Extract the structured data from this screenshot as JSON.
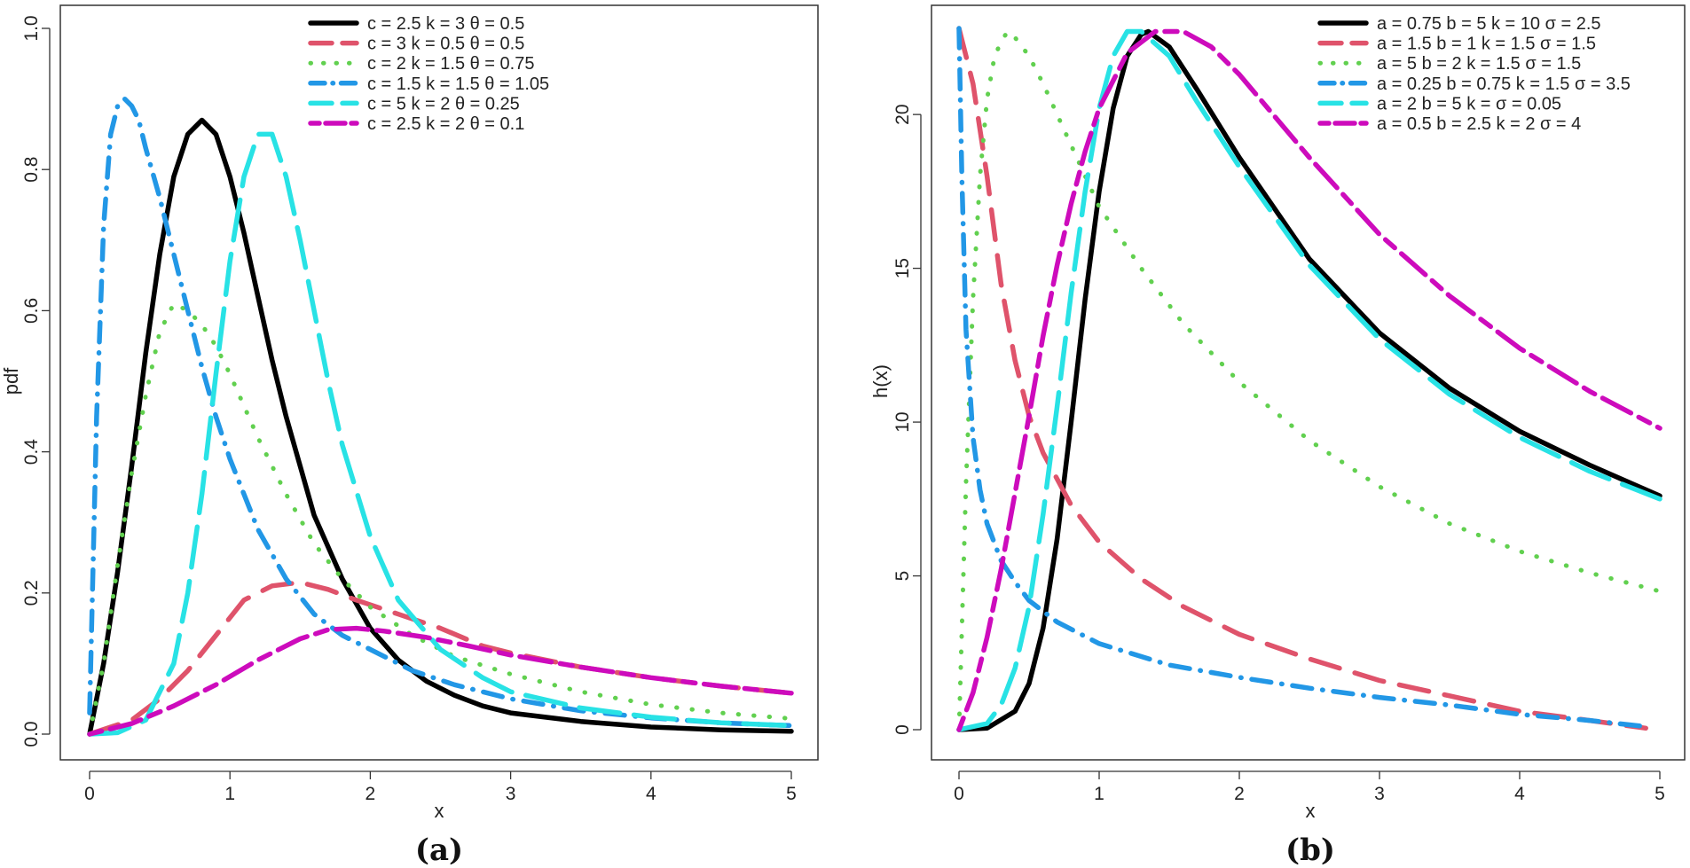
{
  "chart_data": [
    {
      "type": "line",
      "caption": "(a)",
      "xlabel": "x",
      "ylabel": "pdf",
      "xlim": [
        0,
        5
      ],
      "ylim": [
        0,
        1.0
      ],
      "xticks": [
        "0",
        "1",
        "2",
        "3",
        "4",
        "5"
      ],
      "yticks": [
        "0.0",
        "0.2",
        "0.4",
        "0.6",
        "0.8",
        "1.0"
      ],
      "legend_position": "top-right",
      "series": [
        {
          "name": "c = 2.5  k = 3  θ = 0.5",
          "color": "#000000",
          "dash": "solid",
          "x": [
            0,
            0.1,
            0.2,
            0.3,
            0.4,
            0.5,
            0.6,
            0.7,
            0.8,
            0.9,
            1.0,
            1.1,
            1.2,
            1.3,
            1.4,
            1.5,
            1.6,
            1.8,
            2.0,
            2.2,
            2.4,
            2.6,
            2.8,
            3.0,
            3.5,
            4.0,
            4.5,
            5.0
          ],
          "y": [
            0,
            0.1,
            0.23,
            0.38,
            0.54,
            0.68,
            0.79,
            0.85,
            0.87,
            0.85,
            0.79,
            0.71,
            0.62,
            0.53,
            0.45,
            0.38,
            0.31,
            0.22,
            0.15,
            0.105,
            0.075,
            0.055,
            0.04,
            0.03,
            0.018,
            0.01,
            0.006,
            0.004
          ]
        },
        {
          "name": "c = 3  k = 0.5  θ = 0.5",
          "color": "#df536b",
          "dash": "dash",
          "x": [
            0,
            0.3,
            0.5,
            0.7,
            0.9,
            1.1,
            1.3,
            1.5,
            1.7,
            1.9,
            2.2,
            2.5,
            2.8,
            3.0,
            3.5,
            4.0,
            4.5,
            5.0
          ],
          "y": [
            0,
            0.02,
            0.05,
            0.09,
            0.14,
            0.19,
            0.21,
            0.215,
            0.205,
            0.19,
            0.17,
            0.15,
            0.125,
            0.115,
            0.095,
            0.08,
            0.068,
            0.058
          ]
        },
        {
          "name": "c = 2  k = 1.5  θ = 0.75",
          "color": "#61d04f",
          "dash": "dot",
          "x": [
            0,
            0.1,
            0.2,
            0.3,
            0.4,
            0.5,
            0.6,
            0.7,
            0.8,
            0.9,
            1.0,
            1.2,
            1.4,
            1.6,
            1.8,
            2.0,
            2.3,
            2.6,
            3.0,
            3.5,
            4.0,
            4.5,
            5.0
          ],
          "y": [
            0,
            0.1,
            0.24,
            0.37,
            0.48,
            0.57,
            0.61,
            0.6,
            0.58,
            0.55,
            0.51,
            0.42,
            0.34,
            0.27,
            0.22,
            0.18,
            0.14,
            0.11,
            0.085,
            0.06,
            0.042,
            0.03,
            0.022
          ]
        },
        {
          "name": "c = 1.5  k = 1.5  θ = 1.05",
          "color": "#2297e6",
          "dash": "dashdot",
          "x": [
            0,
            0.05,
            0.1,
            0.15,
            0.2,
            0.25,
            0.3,
            0.35,
            0.4,
            0.5,
            0.6,
            0.7,
            0.8,
            0.9,
            1.0,
            1.1,
            1.2,
            1.4,
            1.6,
            1.8,
            2.0,
            2.3,
            2.6,
            3.0,
            3.5,
            4.0,
            4.5,
            5.0
          ],
          "y": [
            0.03,
            0.45,
            0.72,
            0.85,
            0.89,
            0.9,
            0.89,
            0.87,
            0.83,
            0.76,
            0.68,
            0.6,
            0.52,
            0.45,
            0.39,
            0.34,
            0.29,
            0.22,
            0.17,
            0.14,
            0.12,
            0.09,
            0.07,
            0.05,
            0.033,
            0.023,
            0.016,
            0.012
          ]
        },
        {
          "name": "c = 5  k = 2  θ = 0.25",
          "color": "#28e2e5",
          "dash": "longdash",
          "x": [
            0,
            0.2,
            0.4,
            0.6,
            0.7,
            0.8,
            0.9,
            1.0,
            1.1,
            1.2,
            1.3,
            1.4,
            1.5,
            1.6,
            1.7,
            1.8,
            2.0,
            2.2,
            2.5,
            2.8,
            3.0,
            3.5,
            4.0,
            4.5,
            5.0
          ],
          "y": [
            0,
            0.002,
            0.02,
            0.1,
            0.2,
            0.34,
            0.51,
            0.67,
            0.79,
            0.85,
            0.85,
            0.79,
            0.7,
            0.6,
            0.5,
            0.41,
            0.28,
            0.19,
            0.12,
            0.08,
            0.06,
            0.037,
            0.024,
            0.016,
            0.012
          ]
        },
        {
          "name": "c = 2.5  k = 2  θ = 0.1",
          "color": "#cd0bbc",
          "dash": "twodash",
          "x": [
            0,
            0.3,
            0.6,
            0.9,
            1.2,
            1.5,
            1.7,
            1.9,
            2.1,
            2.4,
            2.7,
            3.0,
            3.5,
            4.0,
            4.5,
            5.0
          ],
          "y": [
            0,
            0.015,
            0.04,
            0.07,
            0.105,
            0.135,
            0.148,
            0.15,
            0.146,
            0.137,
            0.125,
            0.112,
            0.095,
            0.08,
            0.068,
            0.058
          ]
        }
      ]
    },
    {
      "type": "line",
      "caption": "(b)",
      "xlabel": "x",
      "ylabel": "h(x)",
      "xlim": [
        0,
        5
      ],
      "ylim": [
        0,
        22.8
      ],
      "xticks": [
        "0",
        "1",
        "2",
        "3",
        "4",
        "5"
      ],
      "yticks": [
        "0",
        "5",
        "10",
        "15",
        "20"
      ],
      "legend_position": "top-right",
      "series": [
        {
          "name": "a = 0.75  b = 5  k = 10  σ = 2.5",
          "color": "#000000",
          "dash": "solid",
          "x": [
            0,
            0.2,
            0.4,
            0.5,
            0.6,
            0.7,
            0.8,
            0.9,
            1.0,
            1.1,
            1.2,
            1.3,
            1.35,
            1.5,
            1.7,
            2.0,
            2.5,
            3.0,
            3.5,
            4.0,
            4.5,
            5.0
          ],
          "y": [
            0,
            0.05,
            0.6,
            1.5,
            3.3,
            6.2,
            10,
            14,
            17.5,
            20.2,
            21.9,
            22.6,
            22.7,
            22.2,
            20.8,
            18.6,
            15.3,
            12.9,
            11.1,
            9.7,
            8.6,
            7.6
          ]
        },
        {
          "name": "a = 1.5  b = 1  k = 1.5  σ = 1.5",
          "color": "#df536b",
          "dash": "dash",
          "x": [
            0,
            0.1,
            0.2,
            0.3,
            0.4,
            0.5,
            0.6,
            0.8,
            1.0,
            1.3,
            1.6,
            2.0,
            2.5,
            3.0,
            3.5,
            4.0,
            4.5,
            4.9
          ],
          "y": [
            22.8,
            21,
            18,
            14.5,
            12,
            10.2,
            9,
            7.3,
            6.1,
            4.9,
            4.0,
            3.1,
            2.3,
            1.6,
            1.1,
            0.6,
            0.3,
            0.05
          ]
        },
        {
          "name": "a = 5  b = 2  k = 1.5  σ = 1.5",
          "color": "#61d04f",
          "dash": "dot",
          "x": [
            0,
            0.05,
            0.1,
            0.15,
            0.2,
            0.25,
            0.3,
            0.35,
            0.4,
            0.5,
            0.6,
            0.8,
            1.0,
            1.3,
            1.6,
            2.0,
            2.5,
            3.0,
            3.5,
            4.0,
            4.5,
            5.0
          ],
          "y": [
            0,
            8,
            14,
            18,
            20.5,
            21.8,
            22.4,
            22.7,
            22.5,
            21.9,
            21,
            19,
            17,
            15,
            13.2,
            11.3,
            9.4,
            7.9,
            6.7,
            5.8,
            5.1,
            4.5
          ]
        },
        {
          "name": "a = 0.25  b = 0.75  k = 1.5  σ = 3.5",
          "color": "#2297e6",
          "dash": "dashdot",
          "x": [
            0,
            0.02,
            0.05,
            0.1,
            0.15,
            0.2,
            0.3,
            0.4,
            0.5,
            0.7,
            1.0,
            1.5,
            2.0,
            2.5,
            3.0,
            3.5,
            4.0,
            4.5,
            4.9
          ],
          "y": [
            22.8,
            18,
            13,
            9.5,
            7.8,
            6.7,
            5.5,
            4.8,
            4.2,
            3.5,
            2.8,
            2.1,
            1.7,
            1.35,
            1.05,
            0.8,
            0.5,
            0.3,
            0.1
          ]
        },
        {
          "name": "a = 2  b = 5  k =   σ = 0.05",
          "color": "#28e2e5",
          "dash": "longdash",
          "x": [
            0,
            0.2,
            0.3,
            0.4,
            0.5,
            0.6,
            0.7,
            0.8,
            0.9,
            1.0,
            1.1,
            1.2,
            1.3,
            1.5,
            1.7,
            2.0,
            2.5,
            3.0,
            3.5,
            4.0,
            4.5,
            5.0
          ],
          "y": [
            0,
            0.2,
            0.8,
            2.0,
            4.0,
            7.0,
            10.5,
            14.2,
            17.5,
            20.2,
            21.9,
            22.7,
            22.7,
            21.9,
            20.4,
            18.3,
            15.1,
            12.7,
            10.9,
            9.5,
            8.4,
            7.5
          ]
        },
        {
          "name": "a = 0.5  b = 2.5  k = 2  σ = 4",
          "color": "#cd0bbc",
          "dash": "twodash",
          "x": [
            0,
            0.1,
            0.2,
            0.3,
            0.4,
            0.5,
            0.6,
            0.7,
            0.8,
            0.9,
            1.0,
            1.2,
            1.4,
            1.6,
            1.8,
            2.0,
            2.5,
            3.0,
            3.5,
            4.0,
            4.5,
            5.0
          ],
          "y": [
            0,
            1.2,
            3.0,
            5.2,
            7.7,
            10.2,
            12.8,
            15.1,
            17.1,
            18.8,
            20.2,
            22,
            22.7,
            22.7,
            22.2,
            21.3,
            18.6,
            16.1,
            14.1,
            12.4,
            11,
            9.8
          ]
        }
      ]
    }
  ]
}
